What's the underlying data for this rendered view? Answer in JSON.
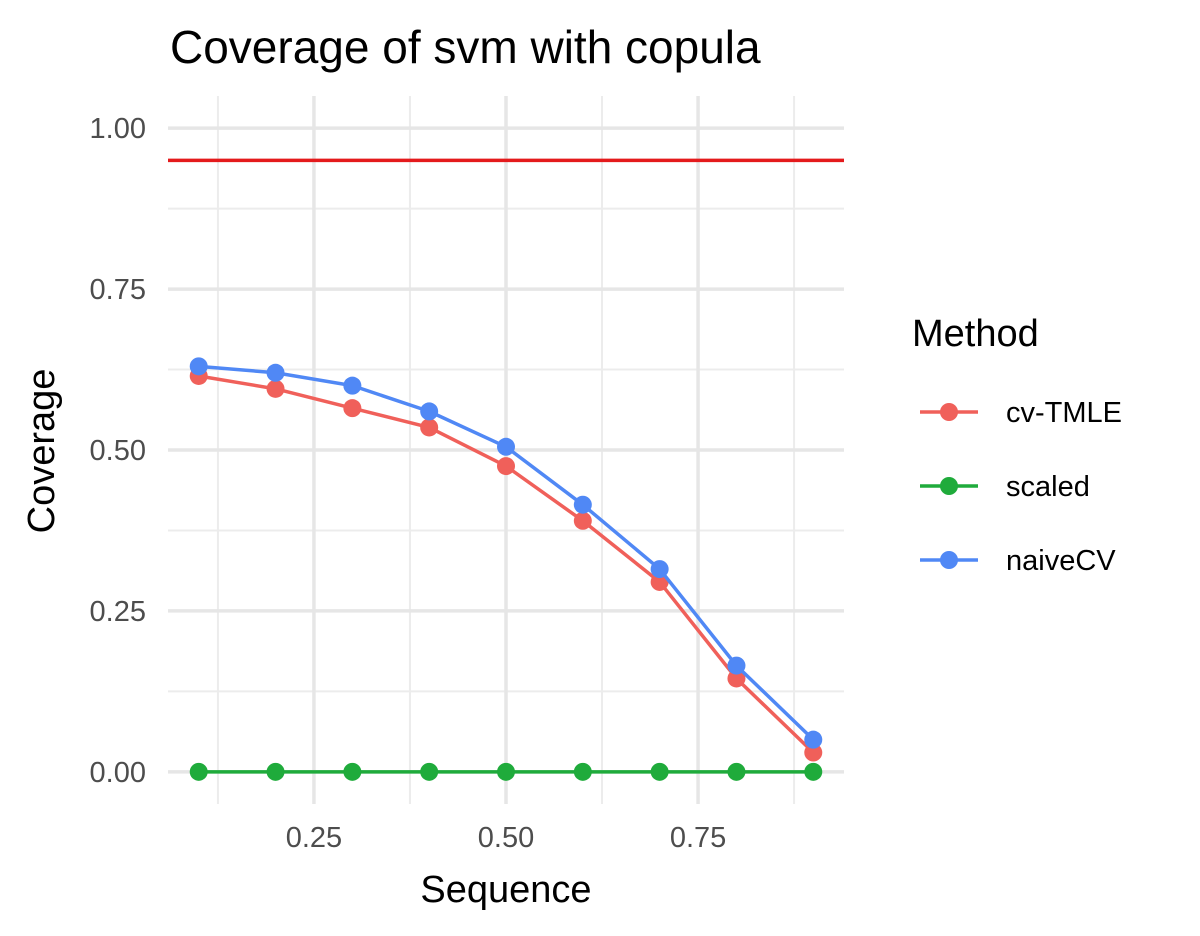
{
  "chart_data": {
    "type": "line",
    "title": "Coverage of svm with copula",
    "xlabel": "Sequence",
    "ylabel": "Coverage",
    "x": [
      0.1,
      0.2,
      0.3,
      0.4,
      0.5,
      0.6,
      0.7,
      0.8,
      0.9
    ],
    "xlim": [
      0.06,
      0.94
    ],
    "ylim": [
      -0.05,
      1.05
    ],
    "x_ticks": [
      0.25,
      0.5,
      0.75
    ],
    "x_tick_labels": [
      "0.25",
      "0.50",
      "0.75"
    ],
    "y_ticks": [
      0,
      0.25,
      0.5,
      0.75,
      1
    ],
    "y_tick_labels": [
      "0.00",
      "0.25",
      "0.50",
      "0.75",
      "1.00"
    ],
    "grid": true,
    "reference_line": {
      "y": 0.95,
      "color": "#e41a1c"
    },
    "legend": {
      "title": "Method",
      "position": "right"
    },
    "series": [
      {
        "name": "cv-TMLE",
        "color": "#f0605a",
        "values": [
          0.615,
          0.595,
          0.565,
          0.535,
          0.475,
          0.39,
          0.295,
          0.145,
          0.03
        ]
      },
      {
        "name": "scaled",
        "color": "#1fab3b",
        "values": [
          0,
          0,
          0,
          0,
          0,
          0,
          0,
          0,
          0
        ]
      },
      {
        "name": "naiveCV",
        "color": "#5088f5",
        "values": [
          0.63,
          0.62,
          0.6,
          0.56,
          0.505,
          0.415,
          0.315,
          0.165,
          0.05
        ]
      }
    ]
  }
}
